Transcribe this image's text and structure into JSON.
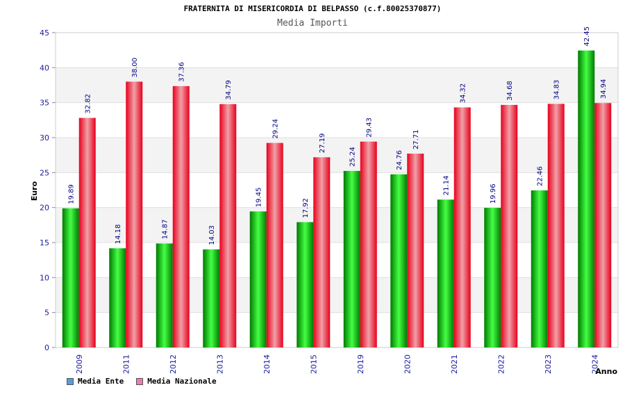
{
  "chart_data": {
    "type": "bar",
    "title": "FRATERNITA DI MISERICORDIA DI BELPASSO (c.f.80025370877)",
    "subtitle": "Media Importi",
    "xlabel": "Anno",
    "ylabel": "Euro",
    "ylim": [
      0,
      45
    ],
    "yticks": [
      0,
      5,
      10,
      15,
      20,
      25,
      30,
      35,
      40,
      45
    ],
    "categories": [
      "2009",
      "2011",
      "2012",
      "2013",
      "2014",
      "2015",
      "2019",
      "2020",
      "2021",
      "2022",
      "2023",
      "2024"
    ],
    "series": [
      {
        "name": "Media Ente",
        "color": "#00a000",
        "legend_color": "#5b9bd5",
        "values": [
          19.89,
          14.18,
          14.87,
          14.03,
          19.45,
          17.92,
          25.24,
          24.76,
          21.14,
          19.96,
          22.46,
          42.45
        ],
        "labels": [
          "19.89",
          "14.18",
          "14.87",
          "14.03",
          "19.45",
          "17.92",
          "25.24",
          "24.76",
          "21.14",
          "19.96",
          "22.46",
          "42.45"
        ]
      },
      {
        "name": "Media Nazionale",
        "color": "#e8001c",
        "legend_color": "#e87fb0",
        "values": [
          32.82,
          38.0,
          37.36,
          34.79,
          29.24,
          27.19,
          29.43,
          27.71,
          34.32,
          34.68,
          34.83,
          34.94
        ],
        "labels": [
          "32.82",
          "38.00",
          "37.36",
          "34.79",
          "29.24",
          "27.19",
          "29.43",
          "27.71",
          "34.32",
          "34.68",
          "34.83",
          "34.94"
        ]
      }
    ],
    "grid": true,
    "legend": "bottom-left"
  }
}
